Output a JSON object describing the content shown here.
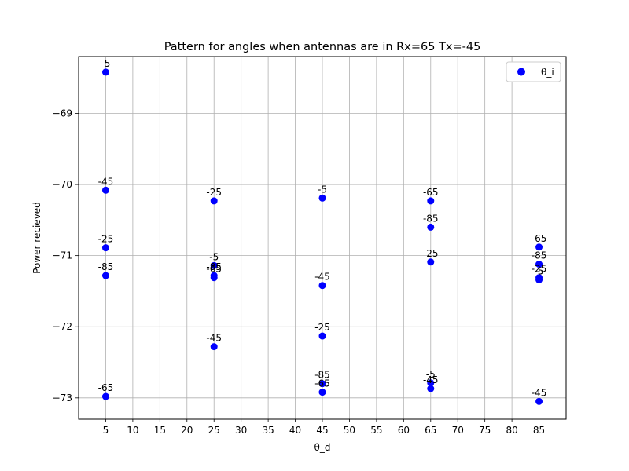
{
  "chart_data": {
    "type": "scatter",
    "title": "Pattern for angles when antennas are in Rx=65 Tx=-45",
    "xlabel": "θ_d",
    "ylabel": "Power recieved",
    "xlim": [
      0,
      90
    ],
    "ylim": [
      -73.3,
      -68.2
    ],
    "xticks": [
      5,
      10,
      15,
      20,
      25,
      30,
      35,
      40,
      45,
      50,
      55,
      60,
      65,
      70,
      75,
      80,
      85
    ],
    "yticks": [
      -73,
      -72,
      -71,
      -70,
      -69
    ],
    "grid": true,
    "legend": {
      "position": "top-right",
      "entries": [
        "θ_i"
      ]
    },
    "color": "#0000ff",
    "series": [
      {
        "name": "θ_i",
        "points": [
          {
            "x": 5,
            "y": -68.42,
            "label": "-5"
          },
          {
            "x": 5,
            "y": -70.08,
            "label": "-45"
          },
          {
            "x": 5,
            "y": -70.89,
            "label": "-25"
          },
          {
            "x": 5,
            "y": -71.28,
            "label": "-85"
          },
          {
            "x": 5,
            "y": -72.98,
            "label": "-65"
          },
          {
            "x": 25,
            "y": -70.23,
            "label": "-25"
          },
          {
            "x": 25,
            "y": -71.14,
            "label": "-5"
          },
          {
            "x": 25,
            "y": -71.28,
            "label": "-85"
          },
          {
            "x": 25,
            "y": -71.31,
            "label": "-65"
          },
          {
            "x": 25,
            "y": -72.28,
            "label": "-45"
          },
          {
            "x": 45,
            "y": -70.19,
            "label": "-5"
          },
          {
            "x": 45,
            "y": -71.42,
            "label": "-45"
          },
          {
            "x": 45,
            "y": -72.13,
            "label": "-25"
          },
          {
            "x": 45,
            "y": -72.8,
            "label": "-85"
          },
          {
            "x": 45,
            "y": -72.92,
            "label": "-65"
          },
          {
            "x": 65,
            "y": -70.23,
            "label": "-65"
          },
          {
            "x": 65,
            "y": -70.6,
            "label": "-85"
          },
          {
            "x": 65,
            "y": -71.09,
            "label": "-25"
          },
          {
            "x": 65,
            "y": -72.79,
            "label": "-5"
          },
          {
            "x": 65,
            "y": -72.87,
            "label": "-45"
          },
          {
            "x": 85,
            "y": -70.88,
            "label": "-65"
          },
          {
            "x": 85,
            "y": -71.12,
            "label": "-85"
          },
          {
            "x": 85,
            "y": -71.31,
            "label": "-25"
          },
          {
            "x": 85,
            "y": -71.34,
            "label": "-5"
          },
          {
            "x": 85,
            "y": -73.05,
            "label": "-45"
          }
        ]
      }
    ]
  }
}
